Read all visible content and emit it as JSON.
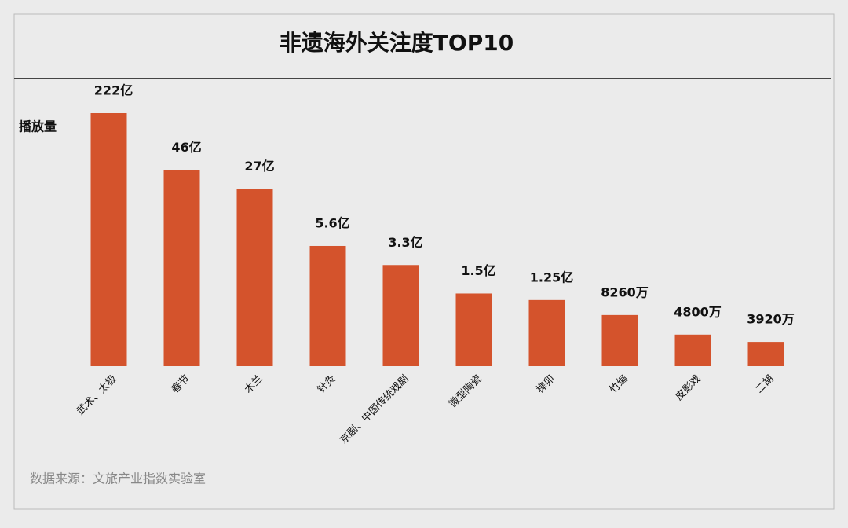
{
  "chart_data": {
    "type": "bar",
    "title": "非遗海外关注度TOP10",
    "y_label": "播放量",
    "source": "数据来源：文旅产业指数实验室",
    "categories": [
      "武术、太极",
      "春节",
      "木兰",
      "针灸",
      "京剧、中国传统戏剧",
      "微型陶瓷",
      "榫卯",
      "竹编",
      "皮影戏",
      "二胡"
    ],
    "values": [
      22200000000,
      4600000000,
      2700000000,
      560000000,
      330000000,
      150000000,
      125000000,
      82600000,
      48000000,
      39200000
    ],
    "value_labels": [
      "222亿",
      "46亿",
      "27亿",
      "5.6亿",
      "3.3亿",
      "1.5亿",
      "1.25亿",
      "8260万",
      "4800万",
      "3920万"
    ],
    "color": "#d4532c",
    "log": true,
    "ylim": [
      20000000,
      22200000000
    ]
  }
}
